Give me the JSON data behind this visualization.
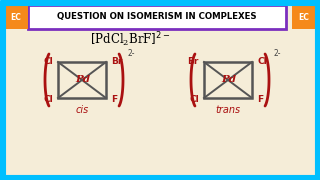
{
  "bg_color": "#f5edd8",
  "border_color": "#00bfff",
  "header_bg": "#ffffff",
  "header_border": "#7b2fbe",
  "header_text": "QUESTION ON ISOMERISM IN COMPLEXES",
  "header_text_color": "#000000",
  "ec_bg": "#f5891a",
  "ec_text": "EC",
  "ligand_color": "#aa1111",
  "pd_color": "#aa1111",
  "square_color": "#555555",
  "cis_label": "cis",
  "trans_label": "trans",
  "bracket_color": "#aa1111",
  "charge_color": "#444444"
}
